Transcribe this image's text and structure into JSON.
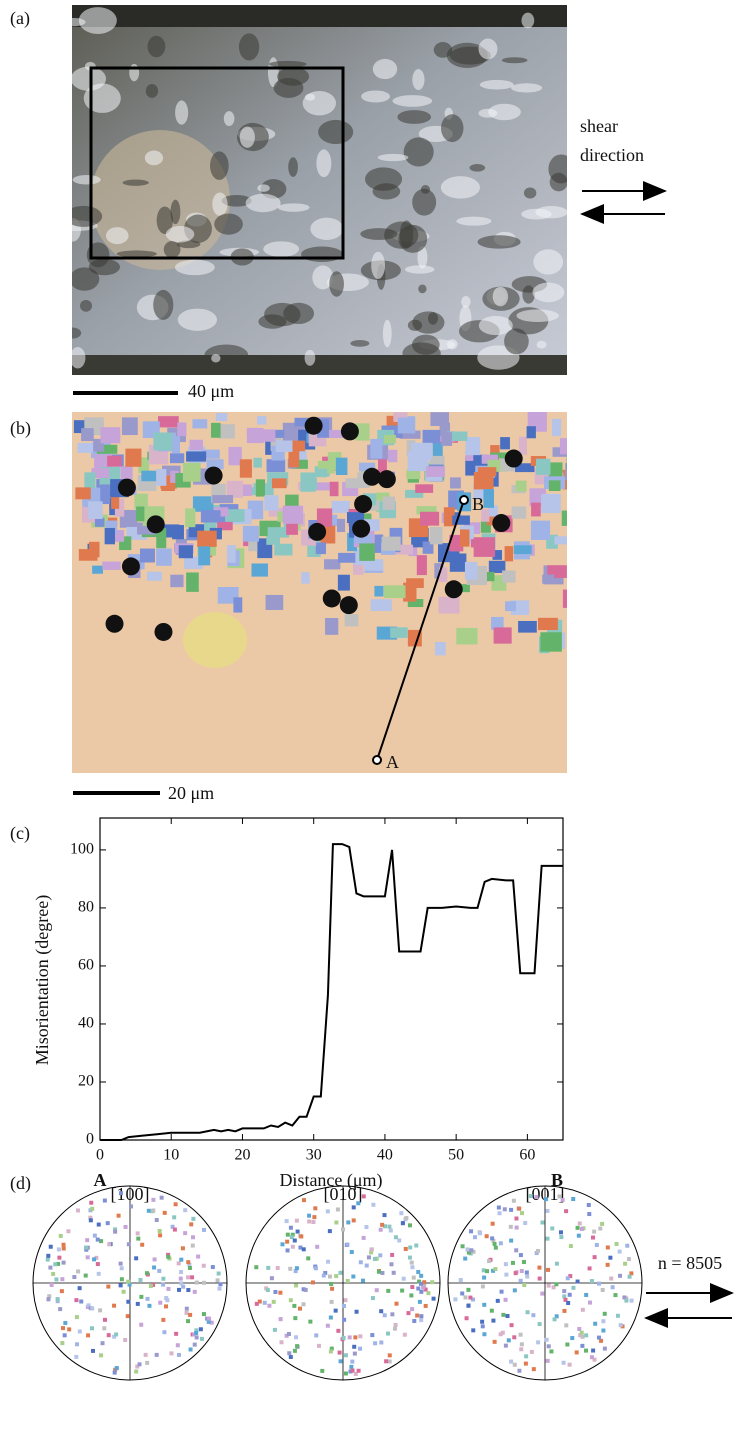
{
  "panel_a": {
    "label": "(a)",
    "scale_bar": "40 μm",
    "shear_label": [
      "shear",
      "direction"
    ]
  },
  "panel_b": {
    "label": "(b)",
    "scale_bar": "20 μm",
    "point_a": "A",
    "point_b": "B"
  },
  "chart_data": {
    "type": "line",
    "panel_label": "(c)",
    "x_label": "Distance (μm)",
    "y_label": "Misorientation (degree)",
    "x_end_labels": [
      "A",
      "B"
    ],
    "x": [
      0,
      3,
      4,
      6,
      8,
      10,
      14,
      16,
      17,
      18,
      19,
      20,
      22,
      23,
      24,
      25,
      26,
      27,
      28,
      29,
      30,
      31,
      32,
      32.7,
      34,
      35,
      36,
      37,
      39,
      40,
      41,
      42,
      45,
      46,
      48,
      50,
      52,
      53,
      54,
      55,
      57,
      58,
      59,
      61,
      62,
      65
    ],
    "values": [
      0,
      0,
      1,
      1.5,
      2,
      2.5,
      2.5,
      3.5,
      3,
      3.5,
      3,
      4,
      4,
      4,
      5,
      4.5,
      6,
      5,
      8,
      8,
      15,
      15,
      50,
      102,
      102,
      101,
      85,
      84,
      84,
      84,
      100,
      65,
      65,
      80,
      80,
      80.5,
      80,
      80,
      89,
      90,
      89.5,
      89.5,
      57.5,
      57.5,
      94.5,
      94.5
    ],
    "color": "#000000",
    "xlim": [
      0,
      65
    ],
    "ylim": [
      0,
      111
    ],
    "xticks": [
      0,
      10,
      20,
      30,
      40,
      50,
      60
    ],
    "yticks": [
      0,
      20,
      40,
      60,
      80,
      100
    ],
    "grid": false
  },
  "panel_d": {
    "label": "(d)",
    "projections": [
      "[100]",
      "[010]",
      "[001]"
    ],
    "count": "n = 8505"
  }
}
